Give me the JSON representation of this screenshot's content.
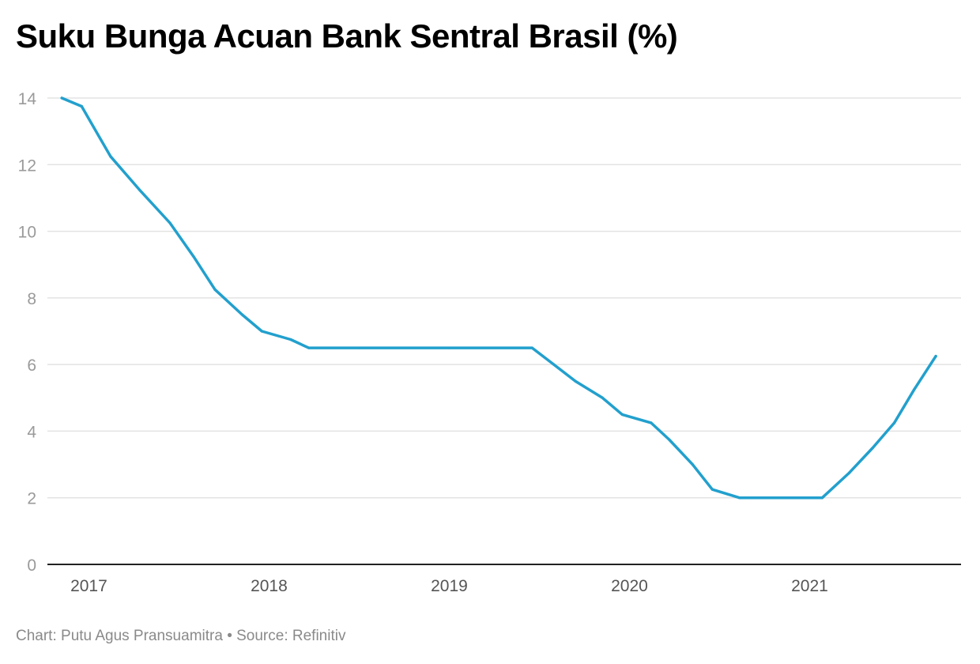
{
  "chart_data": {
    "type": "line",
    "title": "Suku Bunga Acuan Bank Sentral Brasil (%)",
    "xlabel": "",
    "ylabel": "",
    "ylim": [
      0,
      14
    ],
    "yticks": [
      "0",
      "2",
      "4",
      "6",
      "8",
      "10",
      "12",
      "14"
    ],
    "xlim": [
      2016.77,
      2021.84
    ],
    "xticks": [
      {
        "value": 2017,
        "label": "2017"
      },
      {
        "value": 2018,
        "label": "2018"
      },
      {
        "value": 2019,
        "label": "2019"
      },
      {
        "value": 2020,
        "label": "2020"
      },
      {
        "value": 2021,
        "label": "2021"
      }
    ],
    "grid": true,
    "color": "#22a0cd",
    "series": [
      {
        "name": "Suku bunga acuan (%)",
        "x": [
          2016.85,
          2016.96,
          2017.12,
          2017.28,
          2017.45,
          2017.58,
          2017.7,
          2017.85,
          2017.96,
          2018.12,
          2018.22,
          2018.5,
          2019.0,
          2019.46,
          2019.58,
          2019.7,
          2019.85,
          2019.96,
          2020.12,
          2020.22,
          2020.35,
          2020.46,
          2020.61,
          2020.8,
          2021.07,
          2021.22,
          2021.35,
          2021.47,
          2021.58,
          2021.7
        ],
        "values": [
          14.0,
          13.75,
          12.25,
          11.25,
          10.25,
          9.25,
          8.25,
          7.5,
          7.0,
          6.75,
          6.5,
          6.5,
          6.5,
          6.5,
          6.0,
          5.5,
          5.0,
          4.5,
          4.25,
          3.75,
          3.0,
          2.25,
          2.0,
          2.0,
          2.0,
          2.75,
          3.5,
          4.25,
          5.25,
          6.25
        ]
      }
    ]
  },
  "footer": {
    "credit": "Chart: Putu Agus Pransuamitra • Source: Refinitiv"
  }
}
